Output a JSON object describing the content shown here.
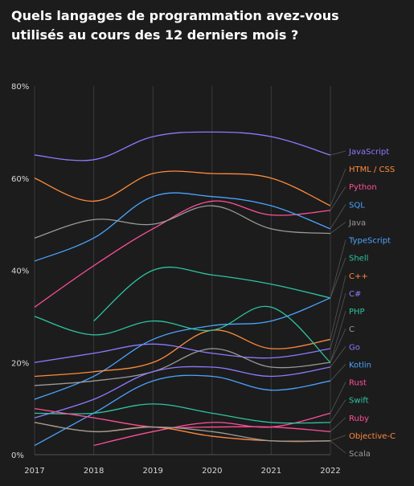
{
  "title": "Quels langages de programmation avez-vous utilisés au cours des 12 derniers mois ?",
  "chart_data": {
    "type": "line",
    "title": "Quels langages de programmation avez-vous utilisés au cours des 12 derniers mois ?",
    "xlabel": "",
    "ylabel": "",
    "x": [
      2017,
      2018,
      2019,
      2020,
      2021,
      2022
    ],
    "ylim": [
      0,
      80
    ],
    "yticks": [
      "0%",
      "20%",
      "40%",
      "60%",
      "80%"
    ],
    "grid": "vertical",
    "legend": "direct labels right",
    "series": [
      {
        "name": "JavaScript",
        "color": "#8b7bff",
        "values": [
          65,
          64,
          69,
          70,
          69,
          65
        ]
      },
      {
        "name": "HTML / CSS",
        "color": "#ff8a3d",
        "values": [
          60,
          55,
          61,
          61,
          60,
          54
        ]
      },
      {
        "name": "Python",
        "color": "#ff4f9a",
        "values": [
          32,
          41,
          49,
          55,
          52,
          53
        ]
      },
      {
        "name": "SQL",
        "color": "#4aa3ff",
        "values": [
          42,
          47,
          56,
          56,
          54,
          49
        ]
      },
      {
        "name": "Java",
        "color": "#9a9a9a",
        "values": [
          47,
          51,
          50,
          54,
          49,
          48
        ]
      },
      {
        "name": "TypeScript",
        "color": "#4aa3ff",
        "values": [
          12,
          17,
          25,
          28,
          29,
          34
        ]
      },
      {
        "name": "Shell",
        "color": "#2ec4a0",
        "values": [
          null,
          29,
          40,
          39,
          37,
          34
        ]
      },
      {
        "name": "C++",
        "color": "#ff8a3d",
        "values": [
          17,
          18,
          20,
          27,
          23,
          25
        ]
      },
      {
        "name": "C#",
        "color": "#8b7bff",
        "values": [
          20,
          22,
          24,
          22,
          21,
          23
        ]
      },
      {
        "name": "PHP",
        "color": "#2ec4a0",
        "values": [
          30,
          26,
          29,
          27,
          32,
          20
        ]
      },
      {
        "name": "C",
        "color": "#9a9a9a",
        "values": [
          15,
          16,
          18,
          23,
          19,
          20
        ]
      },
      {
        "name": "Go",
        "color": "#8b7bff",
        "values": [
          8,
          12,
          18,
          19,
          17,
          19
        ]
      },
      {
        "name": "Kotlin",
        "color": "#4aa3ff",
        "values": [
          2,
          9,
          16,
          17,
          14,
          16
        ]
      },
      {
        "name": "Rust",
        "color": "#ff4f9a",
        "values": [
          null,
          2,
          5,
          7,
          6,
          9
        ]
      },
      {
        "name": "Swift",
        "color": "#2ec4a0",
        "values": [
          9,
          9,
          11,
          9,
          7,
          7
        ]
      },
      {
        "name": "Ruby",
        "color": "#ff4f9a",
        "values": [
          10,
          8,
          6,
          6,
          6,
          5
        ]
      },
      {
        "name": "Objective-C",
        "color": "#ff8a3d",
        "values": [
          7,
          5,
          6,
          4,
          3,
          3
        ]
      },
      {
        "name": "Scala",
        "color": "#9a9a9a",
        "values": [
          7,
          5,
          6,
          5,
          3,
          3
        ]
      }
    ],
    "label_colors": {
      "JavaScript": "#8b7bff",
      "HTML / CSS": "#ff8a3d",
      "Python": "#ff4f9a",
      "SQL": "#4aa3ff",
      "Java": "#9a9a9a",
      "TypeScript": "#4aa3ff",
      "Shell": "#2ec4a0",
      "C++": "#ff8a3d",
      "C#": "#8b7bff",
      "PHP": "#2ec4a0",
      "C": "#9a9a9a",
      "Go": "#8b7bff",
      "Kotlin": "#4aa3ff",
      "Rust": "#ff4f9a",
      "Swift": "#2ec4a0",
      "Ruby": "#ff4f9a",
      "Objective-C": "#ff8a3d",
      "Scala": "#9a9a9a"
    }
  }
}
